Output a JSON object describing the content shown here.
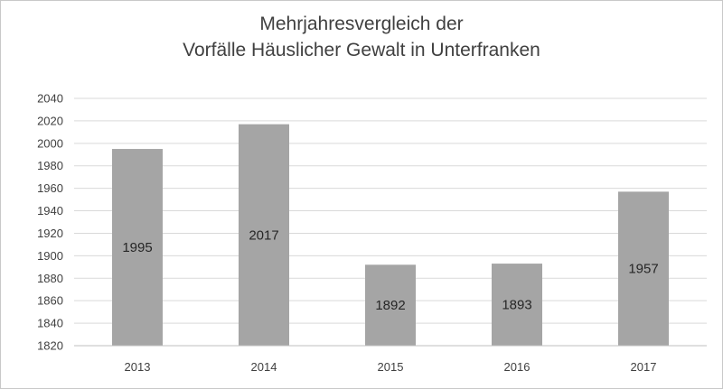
{
  "chart_data": {
    "type": "bar",
    "title_lines": [
      "Mehrjahresvergleich der",
      "Vorfälle Häuslicher Gewalt in Unterfranken"
    ],
    "categories": [
      "2013",
      "2014",
      "2015",
      "2016",
      "2017"
    ],
    "values": [
      1995,
      2017,
      1892,
      1893,
      1957
    ],
    "data_labels": [
      "1995",
      "2017",
      "1892",
      "1893",
      "1957"
    ],
    "ylim": [
      1820,
      2040
    ],
    "yticks": [
      "1820",
      "1840",
      "1860",
      "1880",
      "1900",
      "1920",
      "1940",
      "1960",
      "1980",
      "2000",
      "2020",
      "2040"
    ],
    "xlabel": "",
    "ylabel": "",
    "grid": true,
    "legend": "none",
    "colors": {
      "bar": "#a5a5a5",
      "grid": "#d9d9d9",
      "axis": "#bfbfbf"
    }
  }
}
